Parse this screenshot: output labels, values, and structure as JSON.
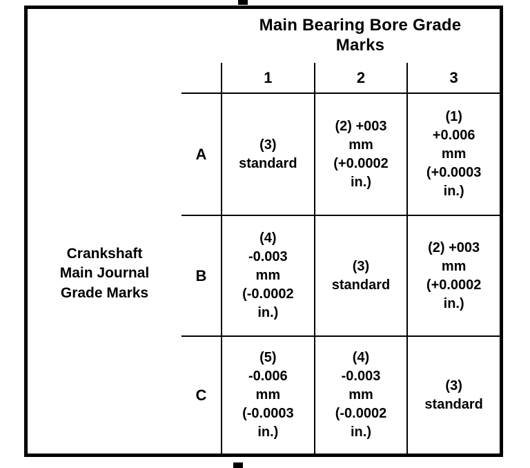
{
  "colors": {
    "background": "#ffffff",
    "border": "#000000",
    "text": "#000000"
  },
  "table": {
    "column_group_title": "Main Bearing Bore Grade\nMarks",
    "row_group_title": "Crankshaft\nMain Journal\nGrade Marks",
    "column_headers": [
      "1",
      "2",
      "3"
    ],
    "rows": [
      {
        "label": "A",
        "cells": [
          "(3)\nstandard",
          "(2) +003\nmm\n(+0.0002\nin.)",
          "(1)\n+0.006\nmm\n(+0.0003\nin.)"
        ]
      },
      {
        "label": "B",
        "cells": [
          "(4)\n-0.003\nmm\n(-0.0002\nin.)",
          "(3)\nstandard",
          "(2) +003\nmm\n(+0.0002\nin.)"
        ]
      },
      {
        "label": "C",
        "cells": [
          "(5)\n-0.006\nmm\n(-0.0003\nin.)",
          "(4)\n-0.003\nmm\n(-0.0002\nin.)",
          "(3)\nstandard"
        ]
      }
    ]
  }
}
